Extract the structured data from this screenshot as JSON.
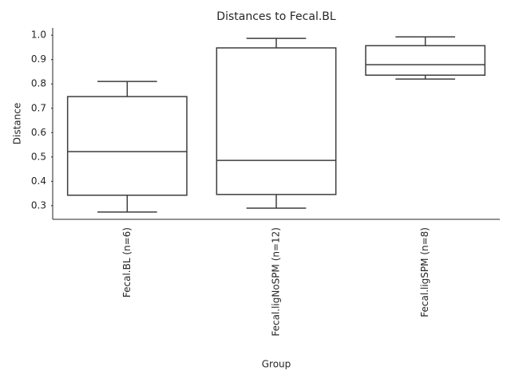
{
  "chart_data": {
    "type": "box",
    "title": "Distances to Fecal.BL",
    "xlabel": "Group",
    "ylabel": "Distance",
    "categories": [
      "Fecal.BL (n=6)",
      "Fecal.ligNoSPM (n=12)",
      "Fecal.ligSPM (n=8)"
    ],
    "min": [
      0.274,
      0.29,
      0.82
    ],
    "q1": [
      0.343,
      0.346,
      0.836
    ],
    "median": [
      0.522,
      0.486,
      0.879
    ],
    "q3": [
      0.748,
      0.948,
      0.957
    ],
    "max": [
      0.81,
      0.987,
      0.993
    ],
    "color": "#3d3d3d",
    "ylim": [
      0.244,
      1.03
    ],
    "yticks": [
      0.3,
      0.4,
      0.5,
      0.6,
      0.7,
      0.8,
      0.9,
      {
        "value": 1,
        "label": "1.0"
      }
    ]
  }
}
